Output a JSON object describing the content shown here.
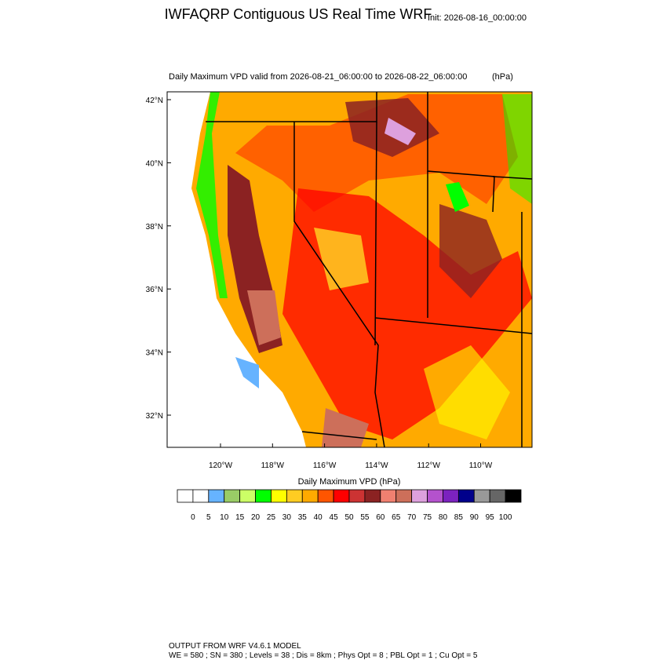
{
  "header": {
    "title": "IWFAQRP Contiguous US Real Time WRF",
    "init": "Init: 2026-08-16_00:00:00"
  },
  "map": {
    "subtitle": "Daily Maximum VPD valid from 2026-08-21_06:00:00 to 2026-08-22_06:00:00",
    "units": "(hPa)",
    "lat_ticks": [
      "42°N",
      "40°N",
      "38°N",
      "36°N",
      "34°N",
      "32°N"
    ],
    "lon_ticks": [
      "120°W",
      "118°W",
      "116°W",
      "114°W",
      "112°W",
      "110°W"
    ]
  },
  "colorbar": {
    "title": "Daily Maximum VPD  (hPa)",
    "labels": [
      0,
      5,
      10,
      15,
      20,
      25,
      30,
      35,
      40,
      45,
      50,
      55,
      60,
      65,
      70,
      75,
      80,
      85,
      90,
      95,
      100
    ],
    "colors": [
      "#ffffff",
      "#ffffff",
      "#66b3ff",
      "#99cc66",
      "#ccff66",
      "#00ff00",
      "#ffff00",
      "#ffcc22",
      "#ffaa00",
      "#ff5500",
      "#ff0000",
      "#cc3333",
      "#8b2222",
      "#f08070",
      "#cd6f5a",
      "#dda0dd",
      "#b452cd",
      "#7b22bf",
      "#00008b",
      "#999999",
      "#666666",
      "#000000"
    ]
  },
  "footer": {
    "line1": "OUTPUT FROM WRF V4.6.1 MODEL",
    "line2": "WE = 580 ; SN = 380 ; Levels = 38 ; Dis = 8km ; Phys Opt = 8 ; PBL Opt = 1 ; Cu Opt = 5"
  }
}
